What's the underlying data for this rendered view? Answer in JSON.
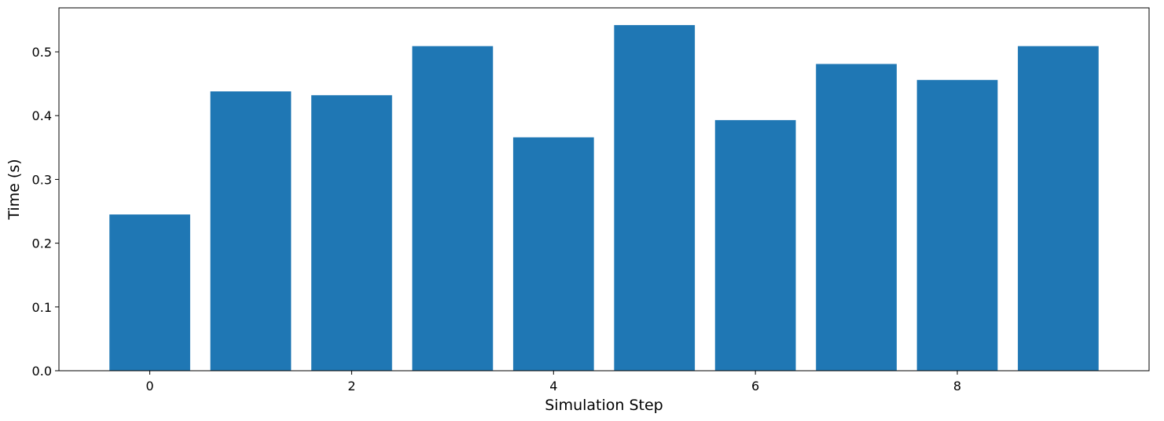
{
  "chart_data": {
    "type": "bar",
    "title": "",
    "xlabel": "Simulation Step",
    "ylabel": "Time (s)",
    "x": [
      0,
      1,
      2,
      3,
      4,
      5,
      6,
      7,
      8,
      9
    ],
    "values": [
      0.245,
      0.438,
      0.432,
      0.509,
      0.366,
      0.542,
      0.393,
      0.481,
      0.456,
      0.509
    ],
    "xlim": [
      -0.9,
      9.9
    ],
    "ylim": [
      0,
      0.569
    ],
    "xticks": [
      0,
      2,
      4,
      6,
      8
    ],
    "xtick_labels": [
      "0",
      "2",
      "4",
      "6",
      "8"
    ],
    "yticks": [
      0,
      0.1,
      0.2,
      0.3,
      0.4,
      0.5
    ],
    "ytick_labels": [
      "0.0",
      "0.1",
      "0.2",
      "0.3",
      "0.4",
      "0.5"
    ],
    "bar_color": "#1f77b4",
    "grid": false,
    "legend": false
  }
}
